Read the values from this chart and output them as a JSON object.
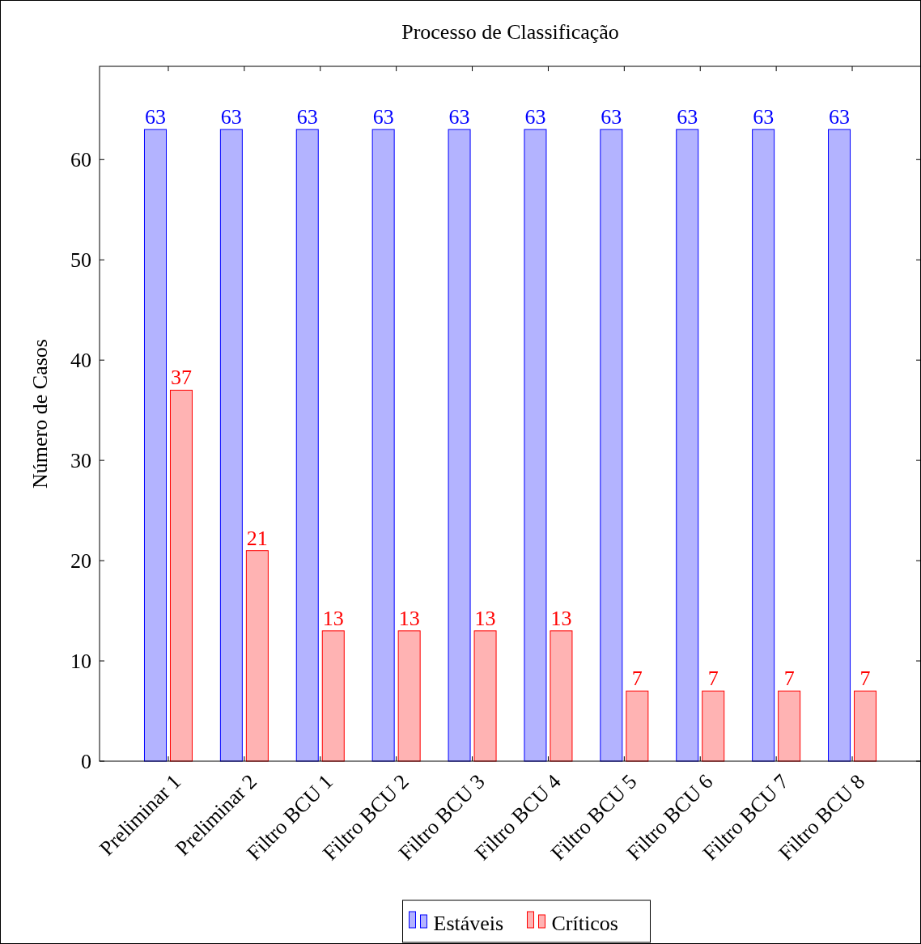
{
  "chart_data": {
    "type": "bar",
    "title": "Processo de Classificação",
    "ylabel": "Número de Casos",
    "categories": [
      "Preliminar 1",
      "Preliminar 2",
      "Filtro BCU 1",
      "Filtro BCU 2",
      "Filtro BCU 3",
      "Filtro BCU 4",
      "Filtro BCU 5",
      "Filtro BCU 6",
      "Filtro BCU 7",
      "Filtro BCU 8"
    ],
    "series": [
      {
        "name": "Estáveis",
        "color": "#b3b3ff",
        "values": [
          63,
          63,
          63,
          63,
          63,
          63,
          63,
          63,
          63,
          63
        ]
      },
      {
        "name": "Críticos",
        "color": "#ffb3b3",
        "values": [
          37,
          21,
          13,
          13,
          13,
          13,
          7,
          7,
          7,
          7
        ]
      }
    ],
    "ylim": [
      0,
      69.3
    ],
    "yticks": [
      0,
      10,
      20,
      30,
      40,
      50,
      60
    ],
    "data_labels": true,
    "legend": "bottom",
    "grid": false
  }
}
